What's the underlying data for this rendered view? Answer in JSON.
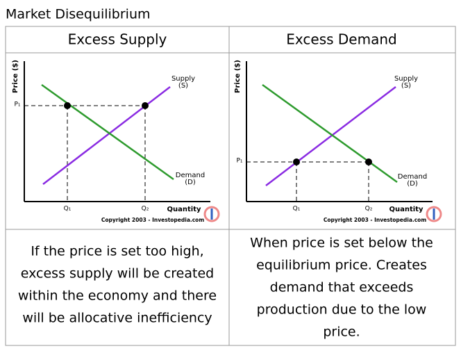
{
  "header": {
    "title": "Market Disequilibrium"
  },
  "table": {
    "headers": [
      "Excess Supply",
      "Excess Demand"
    ],
    "panels": [
      {
        "price_axis": "Price ($)",
        "quantity_axis": "Quantity",
        "p_label": "P₁",
        "q_labels": [
          "Q₁",
          "Q₂"
        ],
        "supply_label": [
          "Supply",
          "(S)"
        ],
        "demand_label": [
          "Demand",
          "(D)"
        ],
        "copyright": "Copyright 2003 - Investopedia.com"
      },
      {
        "price_axis": "Price ($)",
        "quantity_axis": "Quantity",
        "p_label": "P₁",
        "q_labels": [
          "Q₁",
          "Q₂"
        ],
        "supply_label": [
          "Supply",
          "(S)"
        ],
        "demand_label": [
          "Demand",
          "(D)"
        ],
        "copyright": "Copyright 2003 - Investopedia.com"
      }
    ],
    "descriptions": [
      [
        "If the price is set too high,",
        "excess supply will be created",
        "within the economy and there",
        "will be allocative inefficiency"
      ],
      [
        "When price is set below the",
        "equilibrium price. Creates",
        "demand that exceeds",
        "production due to the low",
        "price."
      ]
    ]
  }
}
